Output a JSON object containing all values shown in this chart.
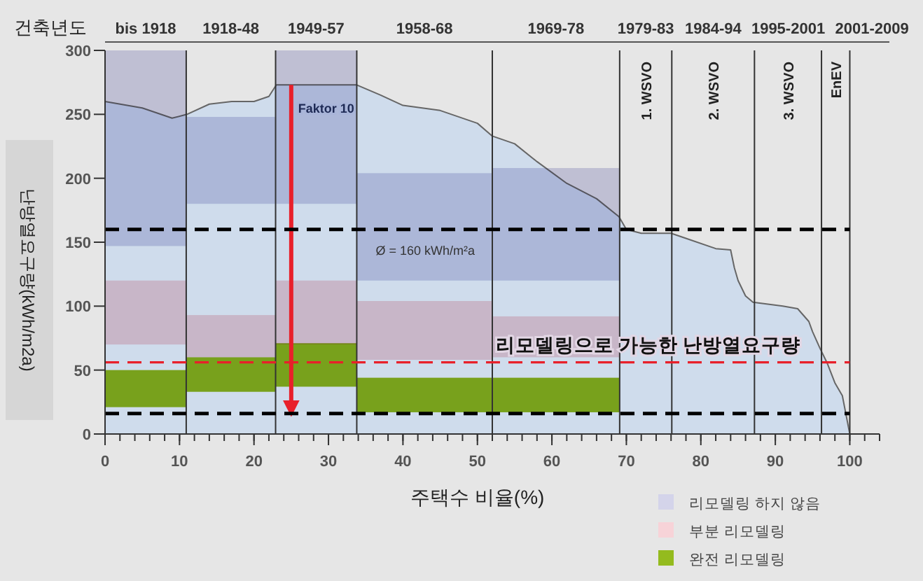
{
  "chart_data": {
    "type": "bar",
    "xlabel": "주택수 비율(%)",
    "ylabel": "난방열요구량(kWh/m2a)",
    "x2label": "건축년도",
    "xlim": [
      0,
      104
    ],
    "ylim": [
      0,
      300
    ],
    "xticks": [
      0,
      10,
      20,
      30,
      40,
      50,
      60,
      70,
      80,
      90,
      100
    ],
    "yticks": [
      0,
      50,
      100,
      150,
      200,
      250,
      300
    ],
    "series": [
      {
        "type": "area",
        "color": "#cfdcec",
        "x": [
          0,
          5,
          9,
          11,
          14,
          17,
          20,
          22,
          23,
          33.8,
          37,
          40,
          45,
          50,
          52,
          55,
          58,
          62,
          66,
          69,
          70,
          72,
          76,
          78,
          82,
          84,
          84.5,
          85,
          86,
          87,
          91,
          93,
          94.5,
          95,
          96,
          97,
          98,
          99,
          100
        ],
        "values": [
          260,
          255,
          247,
          250,
          258,
          260,
          260,
          264,
          273,
          273,
          265,
          257,
          253,
          243,
          233,
          227,
          213,
          196,
          184,
          170,
          160,
          157,
          157,
          153,
          145,
          144,
          130,
          120,
          108,
          103,
          100,
          98,
          88,
          80,
          67,
          55,
          40,
          30,
          0
        ]
      },
      {
        "name": "리모델링 하지 않음",
        "color": "#d4d4ea",
        "x": [
          5.45,
          16.9,
          28.35,
          42.9,
          60.55
        ],
        "base": [
          147,
          180,
          180,
          120,
          120
        ],
        "values": [
          153,
          68,
          120,
          84,
          88
        ]
      },
      {
        "name": "부분 리모델링",
        "color": "#f7d3d8",
        "x": [
          5.45,
          16.9,
          28.35,
          42.9,
          60.55
        ],
        "base": [
          70,
          60,
          70,
          58,
          60
        ],
        "values": [
          50,
          33,
          50,
          46,
          32
        ]
      },
      {
        "name": "완전 리모델링",
        "color": "#94bb1e",
        "x": [
          5.45,
          16.9,
          28.35,
          42.9,
          60.55
        ],
        "base": [
          21,
          33,
          37,
          17,
          17
        ],
        "values": [
          29,
          27,
          34,
          27,
          27
        ]
      },
      {
        "type": "line",
        "color": "#e8202a",
        "x": [
          25,
          25
        ],
        "values": [
          273,
          16
        ]
      }
    ],
    "ref_lines": [
      {
        "axis": "x",
        "value": 10.9
      },
      {
        "axis": "x",
        "value": 22.9
      },
      {
        "axis": "x",
        "value": 33.8
      },
      {
        "axis": "x",
        "value": 52
      },
      {
        "axis": "x",
        "value": 69.1
      },
      {
        "axis": "x",
        "value": 76.1
      },
      {
        "axis": "x",
        "value": 87.2
      },
      {
        "axis": "x",
        "value": 96.2
      },
      {
        "axis": "x",
        "value": 100
      },
      {
        "axis": "y",
        "value": 160,
        "label": "Ø = 160 kWh/m²a",
        "color": "#000000",
        "line_style": "dashed"
      },
      {
        "axis": "y",
        "value": 56,
        "label": "리모델링으로 가능한 난방열요구량",
        "color": "#e8202a",
        "line_style": "dashed"
      },
      {
        "axis": "y",
        "value": 16,
        "color": "#000000",
        "line_style": "dashed"
      }
    ],
    "annotations": [
      "bis 1918",
      "1918-48",
      "1949-57",
      "1958-68",
      "1969-78",
      "1979-83",
      "1984-94",
      "1995-2001",
      "2001-2009",
      "1. WSVO",
      "2. WSVO",
      "3. WSVO",
      "EnEV",
      {
        "text": "Faktor 10",
        "x": 25,
        "y": 273
      }
    ],
    "legend": "bottom right"
  }
}
